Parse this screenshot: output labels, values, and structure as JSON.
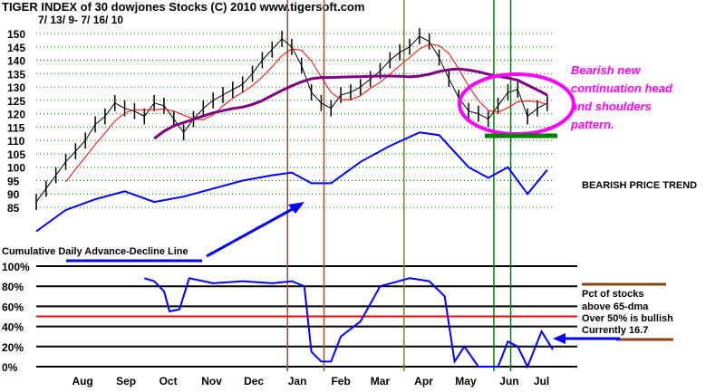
{
  "header": {
    "title": "TIGER INDEX of  30 dowjones Stocks  (C) 2010  www.tigersoft.com",
    "date_range": "7/ 13/ 9- 7/ 16/ 10"
  },
  "annotations": {
    "pattern_lines": [
      "Bearish new",
      "continuation head",
      "and shoulders",
      "pattern."
    ],
    "trend": "BEARISH PRICE TREND",
    "ad_line_label": "Cumulative Daily Advance-Decline Line",
    "pct_legend": [
      "Pct of stocks",
      "above 65-dma",
      "Over 50% is bullish",
      "Currently  16.7"
    ]
  },
  "colors": {
    "price": "#000000",
    "ma_short": "#ff0000",
    "ma_long": "#800080",
    "ad_line": "#0000ff",
    "pattern": "#ff00ff",
    "neckline": "#008000",
    "bullish_threshold": "#ff0000"
  },
  "chart_data": [
    {
      "type": "line",
      "title": "TIGER INDEX of  30 dowjones Stocks",
      "x_range": [
        "2009-07-13",
        "2010-07-16"
      ],
      "x_tick_labels": [
        "Aug",
        "Sep",
        "Oct",
        "Nov",
        "Dec",
        "Jan",
        "Feb",
        "Mar",
        "Apr",
        "May",
        "Jun",
        "Jul"
      ],
      "y_tick_labels": [
        150,
        145,
        140,
        135,
        130,
        125,
        120,
        115,
        110,
        105,
        100,
        95,
        90,
        85
      ],
      "ylim": [
        85,
        150
      ],
      "grid": true,
      "series": [
        {
          "name": "price",
          "points": [
            [
              "2009-07-13",
              87
            ],
            [
              "2009-07-20",
              92
            ],
            [
              "2009-07-27",
              97
            ],
            [
              "2009-08-03",
              102
            ],
            [
              "2009-08-10",
              106
            ],
            [
              "2009-08-17",
              110
            ],
            [
              "2009-08-24",
              116
            ],
            [
              "2009-08-31",
              119
            ],
            [
              "2009-09-07",
              124
            ],
            [
              "2009-09-14",
              122
            ],
            [
              "2009-09-21",
              121
            ],
            [
              "2009-09-28",
              119
            ],
            [
              "2009-10-05",
              124
            ],
            [
              "2009-10-12",
              123
            ],
            [
              "2009-10-19",
              118
            ],
            [
              "2009-10-26",
              113
            ],
            [
              "2009-11-02",
              118
            ],
            [
              "2009-11-09",
              122
            ],
            [
              "2009-11-16",
              125
            ],
            [
              "2009-11-23",
              127
            ],
            [
              "2009-11-30",
              129
            ],
            [
              "2009-12-07",
              131
            ],
            [
              "2009-12-14",
              135
            ],
            [
              "2009-12-21",
              140
            ],
            [
              "2009-12-28",
              144
            ],
            [
              "2010-01-04",
              148
            ],
            [
              "2010-01-11",
              145
            ],
            [
              "2010-01-18",
              138
            ],
            [
              "2010-01-25",
              128
            ],
            [
              "2010-02-01",
              124
            ],
            [
              "2010-02-08",
              122
            ],
            [
              "2010-02-15",
              127
            ],
            [
              "2010-02-22",
              128
            ],
            [
              "2010-03-01",
              130
            ],
            [
              "2010-03-08",
              133
            ],
            [
              "2010-03-15",
              136
            ],
            [
              "2010-03-22",
              140
            ],
            [
              "2010-03-29",
              143
            ],
            [
              "2010-04-05",
              145
            ],
            [
              "2010-04-12",
              149
            ],
            [
              "2010-04-19",
              147
            ],
            [
              "2010-04-26",
              141
            ],
            [
              "2010-05-03",
              133
            ],
            [
              "2010-05-10",
              126
            ],
            [
              "2010-05-17",
              121
            ],
            [
              "2010-05-24",
              120
            ],
            [
              "2010-05-31",
              118
            ],
            [
              "2010-06-07",
              123
            ],
            [
              "2010-06-14",
              128
            ],
            [
              "2010-06-21",
              129
            ],
            [
              "2010-06-28",
              119
            ],
            [
              "2010-07-05",
              122
            ],
            [
              "2010-07-12",
              124
            ]
          ]
        },
        {
          "name": "Cumulative Daily Advance-Decline Line",
          "points": [
            [
              "2009-07-13",
              76
            ],
            [
              "2009-08-03",
              84
            ],
            [
              "2009-08-24",
              88
            ],
            [
              "2009-09-14",
              91
            ],
            [
              "2009-10-05",
              87
            ],
            [
              "2009-10-26",
              89
            ],
            [
              "2009-11-16",
              92
            ],
            [
              "2009-12-07",
              95
            ],
            [
              "2009-12-28",
              97
            ],
            [
              "2010-01-11",
              98
            ],
            [
              "2010-01-25",
              94
            ],
            [
              "2010-02-08",
              94
            ],
            [
              "2010-03-01",
              102
            ],
            [
              "2010-03-22",
              108
            ],
            [
              "2010-04-12",
              113
            ],
            [
              "2010-04-26",
              112
            ],
            [
              "2010-05-17",
              100
            ],
            [
              "2010-05-31",
              96
            ],
            [
              "2010-06-14",
              100
            ],
            [
              "2010-06-28",
              90
            ],
            [
              "2010-07-12",
              99
            ]
          ]
        }
      ],
      "neckline": 115,
      "vertical_markers": [
        {
          "date": "2010-01-08",
          "color": "#a0522d"
        },
        {
          "date": "2010-02-03",
          "color": "#a0522d"
        },
        {
          "date": "2010-04-01",
          "color": "#6b8e23"
        },
        {
          "date": "2010-06-04",
          "color": "#008000"
        },
        {
          "date": "2010-06-16",
          "color": "#008000"
        }
      ]
    },
    {
      "type": "line",
      "title": "Pct of stocks above 65-dma",
      "y_tick_labels": [
        "100%",
        "80%",
        "60%",
        "40%",
        "20%",
        "0%"
      ],
      "ylim": [
        0,
        100
      ],
      "threshold": 50,
      "current": 16.7,
      "series": [
        {
          "name": "Pct of stocks above 65-dma",
          "points": [
            [
              "2009-09-28",
              88
            ],
            [
              "2009-10-05",
              85
            ],
            [
              "2009-10-12",
              75
            ],
            [
              "2009-10-16",
              55
            ],
            [
              "2009-10-23",
              57
            ],
            [
              "2009-10-30",
              88
            ],
            [
              "2009-11-16",
              83
            ],
            [
              "2009-12-07",
              85
            ],
            [
              "2009-12-28",
              83
            ],
            [
              "2010-01-11",
              85
            ],
            [
              "2010-01-20",
              80
            ],
            [
              "2010-01-25",
              15
            ],
            [
              "2010-02-01",
              5
            ],
            [
              "2010-02-08",
              5
            ],
            [
              "2010-02-15",
              30
            ],
            [
              "2010-03-01",
              45
            ],
            [
              "2010-03-15",
              80
            ],
            [
              "2010-04-05",
              88
            ],
            [
              "2010-04-19",
              85
            ],
            [
              "2010-04-30",
              70
            ],
            [
              "2010-05-07",
              5
            ],
            [
              "2010-05-14",
              20
            ],
            [
              "2010-05-24",
              0
            ],
            [
              "2010-06-07",
              0
            ],
            [
              "2010-06-14",
              25
            ],
            [
              "2010-06-21",
              20
            ],
            [
              "2010-06-28",
              0
            ],
            [
              "2010-07-08",
              35
            ],
            [
              "2010-07-16",
              17
            ]
          ]
        }
      ]
    }
  ]
}
